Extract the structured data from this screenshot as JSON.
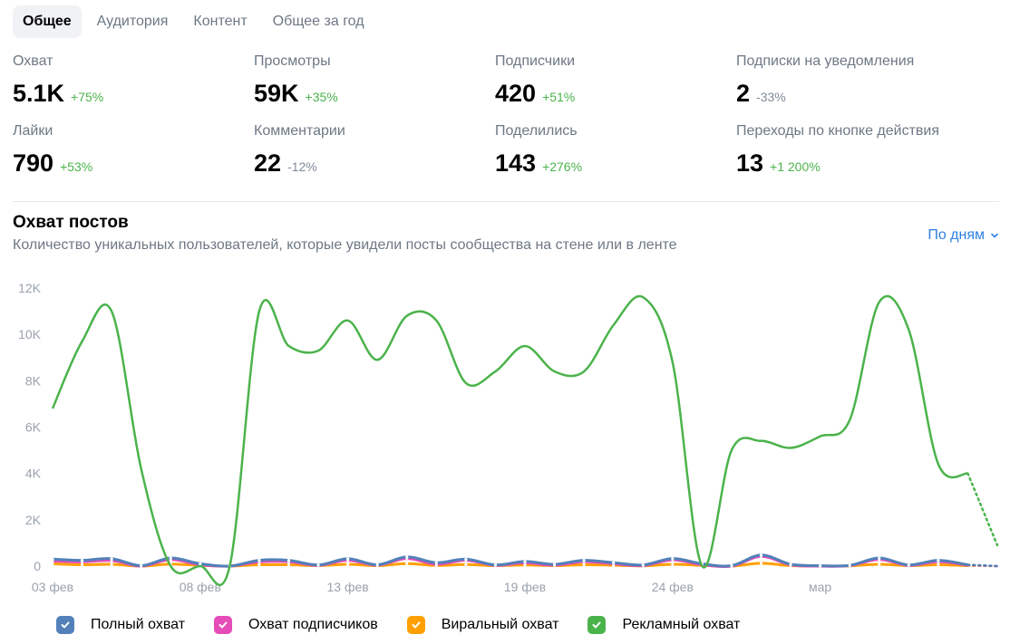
{
  "tabs": [
    {
      "label": "Общее",
      "active": true
    },
    {
      "label": "Аудитория",
      "active": false
    },
    {
      "label": "Контент",
      "active": false
    },
    {
      "label": "Общее за год",
      "active": false
    }
  ],
  "stats": [
    {
      "label": "Охват",
      "value": "5.1K",
      "delta": "+75%",
      "trend": "up"
    },
    {
      "label": "Просмотры",
      "value": "59K",
      "delta": "+35%",
      "trend": "up"
    },
    {
      "label": "Подписчики",
      "value": "420",
      "delta": "+51%",
      "trend": "up"
    },
    {
      "label": "Подписки на уведомления",
      "value": "2",
      "delta": "-33%",
      "trend": "down"
    },
    {
      "label": "Лайки",
      "value": "790",
      "delta": "+53%",
      "trend": "up"
    },
    {
      "label": "Комментарии",
      "value": "22",
      "delta": "-12%",
      "trend": "down"
    },
    {
      "label": "Поделились",
      "value": "143",
      "delta": "+276%",
      "trend": "up"
    },
    {
      "label": "Переходы по кнопке действия",
      "value": "13",
      "delta": "+1 200%",
      "trend": "up"
    }
  ],
  "chart": {
    "title": "Охват постов",
    "subtitle": "Количество уникальных пользователей, которые увидели посты сообщества на стене или в ленте",
    "period_label": "По дням"
  },
  "colors": {
    "full": "#5181b8",
    "subscribers": "#e64cb8",
    "viral": "#ffa000",
    "ads": "#4bb34b",
    "accent": "#2d81e0"
  },
  "chart_data": {
    "type": "line",
    "yticks": [
      "0",
      "2K",
      "4K",
      "6K",
      "8K",
      "10K",
      "12K"
    ],
    "ylim": [
      0,
      12000
    ],
    "xticks": [
      {
        "label": "03 фев",
        "index": 0
      },
      {
        "label": "08 фев",
        "index": 5
      },
      {
        "label": "13 фев",
        "index": 10
      },
      {
        "label": "19 фев",
        "index": 16
      },
      {
        "label": "24 фев",
        "index": 21
      },
      {
        "label": "мар",
        "index": 26
      }
    ],
    "x_count": 33,
    "forecast_from": 31,
    "series": [
      {
        "name": "Полный охват",
        "color": "#5181b8",
        "values": [
          300,
          250,
          320,
          20,
          350,
          100,
          0,
          250,
          250,
          50,
          320,
          60,
          400,
          150,
          300,
          50,
          200,
          80,
          250,
          150,
          50,
          330,
          100,
          20,
          480,
          80,
          20,
          30,
          350,
          50,
          250,
          60,
          0
        ]
      },
      {
        "name": "Охват подписчиков",
        "color": "#e64cb8",
        "values": [
          220,
          180,
          240,
          0,
          280,
          60,
          0,
          180,
          190,
          30,
          250,
          40,
          330,
          80,
          250,
          30,
          140,
          40,
          190,
          100,
          20,
          270,
          60,
          0,
          420,
          50,
          0,
          20,
          290,
          30,
          190,
          40,
          0
        ]
      },
      {
        "name": "Виральный охват",
        "color": "#ffa000",
        "values": [
          100,
          60,
          80,
          0,
          90,
          30,
          0,
          60,
          60,
          20,
          80,
          20,
          110,
          30,
          70,
          20,
          50,
          20,
          60,
          40,
          10,
          80,
          30,
          0,
          120,
          20,
          0,
          10,
          80,
          20,
          60,
          20,
          0
        ]
      },
      {
        "name": "Рекламный охват",
        "color": "#4bb34b",
        "values": [
          6800,
          9700,
          11000,
          4200,
          0,
          0,
          0,
          11000,
          9500,
          9300,
          10600,
          8900,
          10800,
          10600,
          7900,
          8400,
          9500,
          8400,
          8400,
          10400,
          11600,
          8800,
          0,
          5000,
          5400,
          5100,
          5600,
          6300,
          11400,
          10200,
          4400,
          4000,
          900
        ]
      }
    ]
  },
  "legend": [
    {
      "label": "Полный охват",
      "color": "#5181b8"
    },
    {
      "label": "Охват подписчиков",
      "color": "#e64cb8"
    },
    {
      "label": "Виральный охват",
      "color": "#ffa000"
    },
    {
      "label": "Рекламный охват",
      "color": "#4bb34b"
    }
  ]
}
